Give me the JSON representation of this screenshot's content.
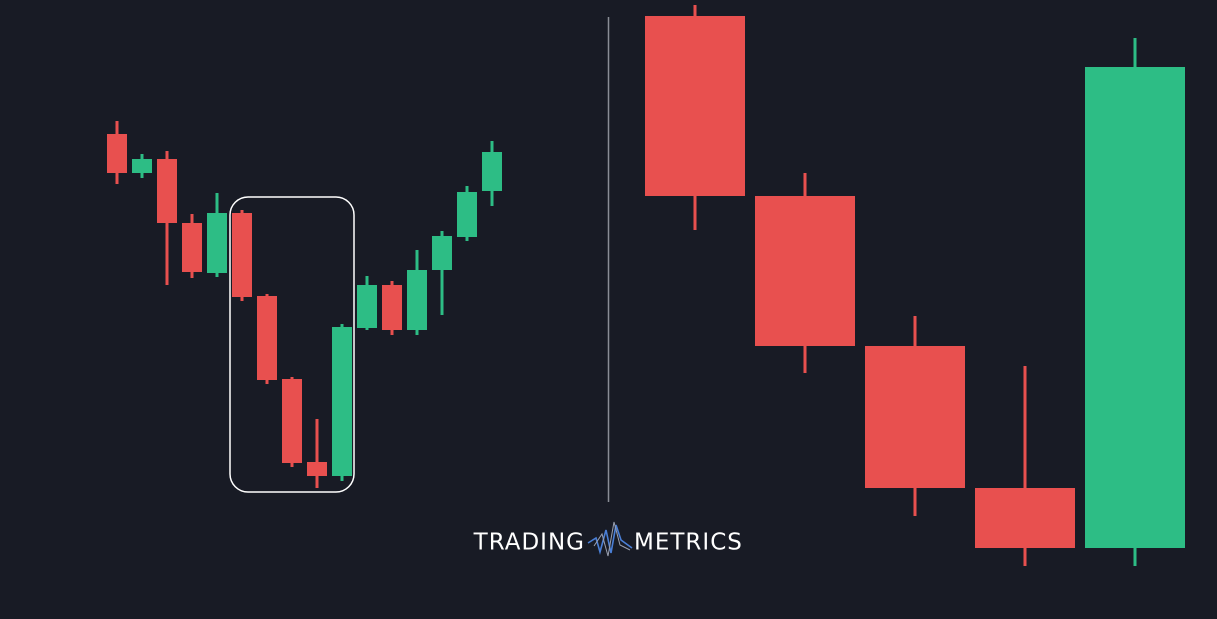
{
  "chart_data": [
    {
      "type": "candlestick",
      "up_color": "#2dbd85",
      "down_color": "#e8504f",
      "ylim": [
        0,
        400
      ],
      "open": [
        366,
        327,
        341,
        277,
        227,
        287,
        204,
        121,
        38,
        24,
        172,
        215,
        170,
        230,
        263,
        309
      ],
      "close": [
        327,
        341,
        277,
        228,
        287,
        203,
        120,
        37,
        24,
        173,
        215,
        170,
        230,
        264,
        308,
        348
      ],
      "high": [
        379,
        346,
        349,
        286,
        307,
        290,
        206,
        123,
        81,
        176,
        224,
        219,
        250,
        269,
        314,
        359
      ],
      "low": [
        316,
        322,
        215,
        222,
        223,
        199,
        116,
        33,
        12,
        19,
        170,
        165,
        165,
        185,
        259,
        294
      ]
    },
    {
      "type": "candlestick",
      "up_color": "#2dbd85",
      "down_color": "#e8504f",
      "ylim": [
        0,
        600
      ],
      "open": [
        584,
        404,
        254,
        112,
        52
      ],
      "close": [
        404,
        254,
        112,
        52,
        533
      ],
      "high": [
        595,
        427,
        284,
        234,
        562
      ],
      "low": [
        370,
        227,
        84,
        34,
        34
      ]
    }
  ],
  "logo": {
    "left": "TRADING",
    "right": "METRICS"
  }
}
